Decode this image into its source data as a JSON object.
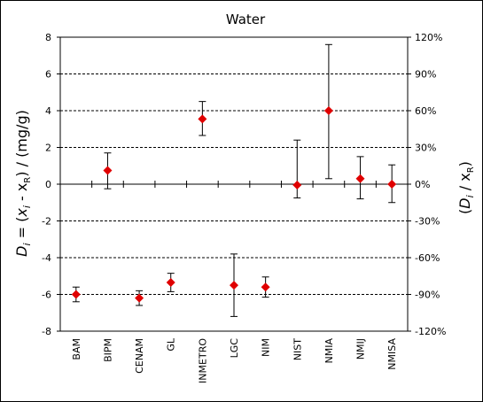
{
  "chart_data": {
    "type": "scatter",
    "title": "Water",
    "ylabel_left": "Di = (xi - xR) / (mg/g)",
    "ylabel_right": "(Di / xR)",
    "categories": [
      "BAM",
      "BIPM",
      "CENAM",
      "GL",
      "INMETRO",
      "LGC",
      "NIM",
      "NIST",
      "NMIA",
      "NMIJ",
      "NMISA"
    ],
    "values": [
      -6.0,
      0.75,
      -6.2,
      -5.35,
      3.55,
      -5.5,
      -5.6,
      -0.05,
      4.0,
      0.3,
      0.0
    ],
    "err_low": [
      -6.4,
      -0.25,
      -6.6,
      -5.85,
      2.65,
      -7.2,
      -6.15,
      -0.75,
      0.3,
      -0.8,
      -1.0
    ],
    "err_high": [
      -5.6,
      1.7,
      -5.8,
      -4.85,
      4.5,
      -3.8,
      -5.05,
      2.4,
      7.6,
      1.5,
      1.05
    ],
    "ylim": [
      -8,
      8
    ],
    "y_ticks": [
      -8,
      -6,
      -4,
      -2,
      0,
      2,
      4,
      6,
      8
    ],
    "ylim_right": [
      "-120%",
      "120%"
    ],
    "y_ticks_right": [
      "-120%",
      "-90%",
      "-60%",
      "-30%",
      "0%",
      "30%",
      "60%",
      "90%",
      "120%"
    ],
    "grid": "horizontal dashed",
    "marker_color": "#e00000"
  }
}
